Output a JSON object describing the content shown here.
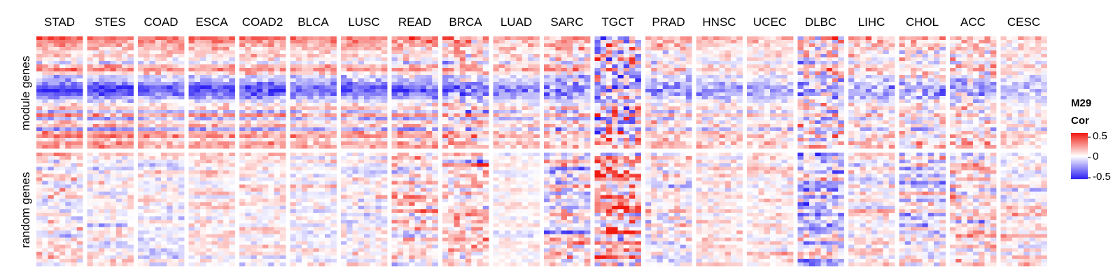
{
  "chart_data": {
    "type": "heatmap",
    "panels": [
      "STAD",
      "STES",
      "COAD",
      "ESCA",
      "COAD2",
      "BLCA",
      "LUSC",
      "READ",
      "BRCA",
      "LUAD",
      "SARC",
      "TGCT",
      "PRAD",
      "HNSC",
      "UCEC",
      "DLBC",
      "LIHC",
      "CHOL",
      "ACC",
      "CESC"
    ],
    "row_groups": [
      "module genes",
      "random genes"
    ],
    "legend": {
      "title_line1": "M29",
      "title_line2": "Cor",
      "ticks": [
        "0.5",
        "0",
        "-0.5"
      ],
      "range": [
        -0.6,
        0.6
      ],
      "colors": {
        "low": "#2b1ff2",
        "mid": "#ffffff",
        "high": "#f01a10"
      }
    },
    "module_row_profile": [
      0.45,
      0.3,
      0.25,
      0.2,
      0.1,
      0.15,
      0.05,
      -0.1,
      0.2,
      0.3,
      0.1,
      -0.15,
      -0.2,
      -0.35,
      -0.5,
      -0.55,
      -0.45,
      -0.3,
      -0.1,
      0.05,
      0.15,
      -0.2,
      0.3,
      -0.25,
      0.1,
      0.2,
      -0.3,
      0.25,
      0.35,
      0.1,
      0.3,
      0.25
    ],
    "panel_module_strength": [
      1.0,
      0.95,
      0.8,
      0.85,
      0.85,
      0.75,
      0.8,
      0.8,
      0.7,
      0.55,
      0.6,
      0.3,
      0.5,
      0.45,
      0.45,
      0.35,
      0.4,
      0.4,
      0.4,
      0.35
    ],
    "panel_noise": [
      0.15,
      0.15,
      0.15,
      0.15,
      0.15,
      0.15,
      0.15,
      0.2,
      0.25,
      0.15,
      0.25,
      0.5,
      0.2,
      0.15,
      0.15,
      0.35,
      0.2,
      0.25,
      0.25,
      0.15
    ],
    "panel_random_spread": [
      0.3,
      0.25,
      0.2,
      0.2,
      0.2,
      0.2,
      0.25,
      0.35,
      0.35,
      0.15,
      0.45,
      0.6,
      0.3,
      0.2,
      0.2,
      0.45,
      0.25,
      0.35,
      0.35,
      0.25
    ],
    "panel_random_bias": [
      0.0,
      0.0,
      0.0,
      0.05,
      0.05,
      0.0,
      0.0,
      0.05,
      0.05,
      0.0,
      0.0,
      0.1,
      0.0,
      0.05,
      0.05,
      -0.1,
      0.05,
      -0.05,
      0.05,
      0.05
    ]
  }
}
